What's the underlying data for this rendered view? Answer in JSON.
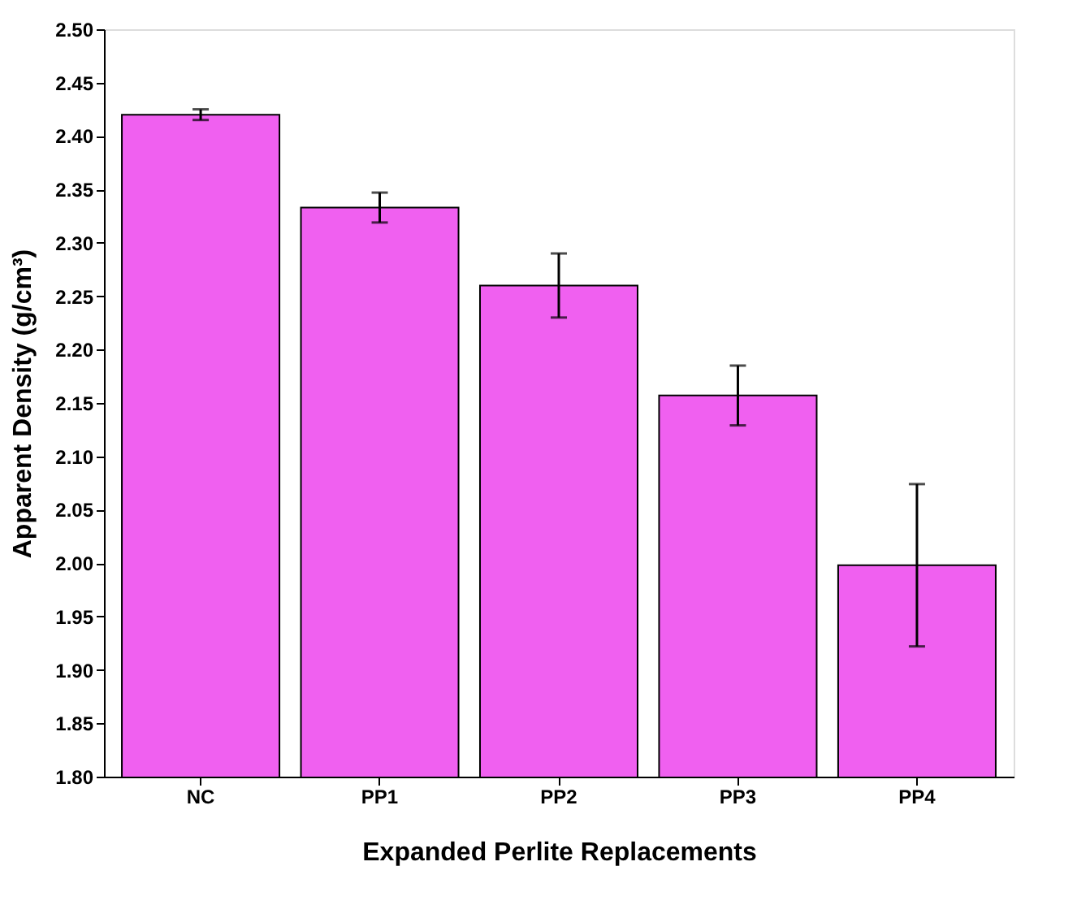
{
  "chart_data": {
    "type": "bar",
    "xlabel": "Expanded Perlite Replacements",
    "ylabel": "Apparent Density (g/cm³)",
    "categories": [
      "NC",
      "PP1",
      "PP2",
      "PP3",
      "PP4"
    ],
    "values": [
      2.42,
      2.333,
      2.26,
      2.157,
      1.998
    ],
    "errors": [
      0.005,
      0.014,
      0.03,
      0.028,
      0.076
    ],
    "color": "#f060f0",
    "ylim": [
      1.8,
      2.5
    ],
    "yticks": [
      {
        "value": 1.8,
        "label": "1.80"
      },
      {
        "value": 1.85,
        "label": "1.85"
      },
      {
        "value": 1.9,
        "label": "1.90"
      },
      {
        "value": 1.95,
        "label": "1.95"
      },
      {
        "value": 2.0,
        "label": "2.00"
      },
      {
        "value": 2.05,
        "label": "2.05"
      },
      {
        "value": 2.1,
        "label": "2.10"
      },
      {
        "value": 2.15,
        "label": "2.15"
      },
      {
        "value": 2.2,
        "label": "2.20"
      },
      {
        "value": 2.25,
        "label": "2.25"
      },
      {
        "value": 2.3,
        "label": "2.30"
      },
      {
        "value": 2.35,
        "label": "2.35"
      },
      {
        "value": 2.4,
        "label": "2.40"
      },
      {
        "value": 2.45,
        "label": "2.45"
      },
      {
        "value": 2.5,
        "label": "2.50"
      }
    ],
    "grid": false
  }
}
